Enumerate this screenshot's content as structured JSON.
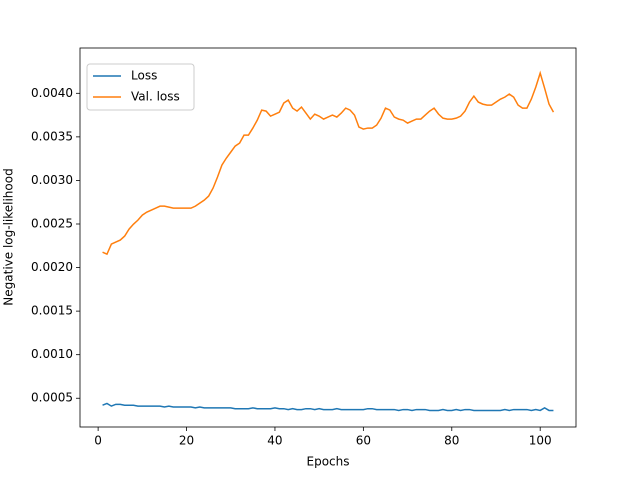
{
  "chart_data": {
    "type": "line",
    "xlabel": "Epochs",
    "ylabel": "Negative log-likelihood",
    "x": [
      1,
      2,
      3,
      4,
      5,
      6,
      7,
      8,
      9,
      10,
      11,
      12,
      13,
      14,
      15,
      16,
      17,
      18,
      19,
      20,
      21,
      22,
      23,
      24,
      25,
      26,
      27,
      28,
      29,
      30,
      31,
      32,
      33,
      34,
      35,
      36,
      37,
      38,
      39,
      40,
      41,
      42,
      43,
      44,
      45,
      46,
      47,
      48,
      49,
      50,
      51,
      52,
      53,
      54,
      55,
      56,
      57,
      58,
      59,
      60,
      61,
      62,
      63,
      64,
      65,
      66,
      67,
      68,
      69,
      70,
      71,
      72,
      73,
      74,
      75,
      76,
      77,
      78,
      79,
      80,
      81,
      82,
      83,
      84,
      85,
      86,
      87,
      88,
      89,
      90,
      91,
      92,
      93,
      94,
      95,
      96,
      97,
      98,
      99,
      100,
      101,
      102,
      103
    ],
    "series": [
      {
        "name": "Loss",
        "color": "#1f77b4",
        "values": [
          0.00042,
          0.00044,
          0.00041,
          0.00043,
          0.00043,
          0.00042,
          0.00042,
          0.00042,
          0.00041,
          0.00041,
          0.00041,
          0.00041,
          0.00041,
          0.00041,
          0.0004,
          0.00041,
          0.0004,
          0.0004,
          0.0004,
          0.0004,
          0.0004,
          0.00039,
          0.0004,
          0.00039,
          0.00039,
          0.00039,
          0.00039,
          0.00039,
          0.00039,
          0.00039,
          0.00038,
          0.00038,
          0.00038,
          0.00038,
          0.00039,
          0.00038,
          0.00038,
          0.00038,
          0.00038,
          0.00039,
          0.00038,
          0.00038,
          0.00037,
          0.00038,
          0.00037,
          0.00037,
          0.00038,
          0.00038,
          0.00037,
          0.00038,
          0.00037,
          0.00037,
          0.00037,
          0.00038,
          0.00037,
          0.00037,
          0.00037,
          0.00037,
          0.00037,
          0.00037,
          0.00038,
          0.00038,
          0.00037,
          0.00037,
          0.00037,
          0.00037,
          0.00037,
          0.00036,
          0.00037,
          0.00037,
          0.00036,
          0.00037,
          0.00037,
          0.00037,
          0.00036,
          0.00036,
          0.00036,
          0.00037,
          0.00036,
          0.00036,
          0.00037,
          0.00036,
          0.00037,
          0.00037,
          0.00036,
          0.00036,
          0.00036,
          0.00036,
          0.00036,
          0.00036,
          0.00036,
          0.00037,
          0.00036,
          0.00037,
          0.00037,
          0.00037,
          0.00037,
          0.00036,
          0.00037,
          0.00036,
          0.00039,
          0.00036,
          0.00036
        ]
      },
      {
        "name": "Val. loss",
        "color": "#ff7f0e",
        "values": [
          0.002177,
          0.002154,
          0.002269,
          0.002292,
          0.002315,
          0.002361,
          0.002441,
          0.002498,
          0.002544,
          0.002602,
          0.002636,
          0.002659,
          0.002682,
          0.002705,
          0.002705,
          0.002694,
          0.002682,
          0.002682,
          0.002682,
          0.002682,
          0.002682,
          0.002705,
          0.00274,
          0.002774,
          0.00282,
          0.002912,
          0.003038,
          0.003176,
          0.003256,
          0.003325,
          0.003394,
          0.003428,
          0.00352,
          0.00352,
          0.003601,
          0.003692,
          0.003807,
          0.003796,
          0.003738,
          0.003761,
          0.003784,
          0.003888,
          0.003922,
          0.00383,
          0.003796,
          0.003842,
          0.003773,
          0.003704,
          0.003761,
          0.003738,
          0.003704,
          0.003727,
          0.00375,
          0.003727,
          0.003773,
          0.00383,
          0.003807,
          0.00375,
          0.003612,
          0.003589,
          0.003601,
          0.003601,
          0.003635,
          0.003715,
          0.00383,
          0.003807,
          0.003727,
          0.003704,
          0.003692,
          0.003658,
          0.003681,
          0.003704,
          0.003704,
          0.00375,
          0.003796,
          0.00383,
          0.003761,
          0.003715,
          0.003704,
          0.003704,
          0.003715,
          0.003738,
          0.003796,
          0.003899,
          0.003968,
          0.003899,
          0.003876,
          0.003865,
          0.003865,
          0.003899,
          0.003933,
          0.003956,
          0.003991,
          0.003956,
          0.003865,
          0.00383,
          0.00383,
          0.003933,
          0.004071,
          0.004232,
          0.004059,
          0.003876,
          0.003784
        ]
      }
    ],
    "xlim": [
      -4.1,
      108.1
    ],
    "xticks": [
      0,
      20,
      40,
      60,
      80,
      100
    ],
    "ylim": [
      0.00017,
      0.00452
    ],
    "yticks": [
      0.0005,
      {
        "value": 0.001,
        "label": "0.0010"
      },
      0.0015,
      {
        "value": 0.002,
        "label": "0.0020"
      },
      0.0025,
      {
        "value": 0.003,
        "label": "0.0030"
      },
      0.0035,
      {
        "value": 0.004,
        "label": "0.0040"
      }
    ],
    "legend": "upper left"
  }
}
